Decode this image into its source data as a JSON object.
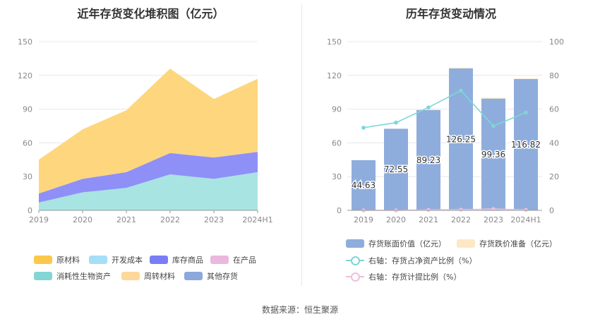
{
  "chart_data": [
    {
      "type": "area",
      "stacked": true,
      "title": "近年存货变化堆积图（亿元）",
      "categories": [
        "2019",
        "2020",
        "2021",
        "2022",
        "2023",
        "2024H1"
      ],
      "ylim": [
        0,
        150
      ],
      "yticks": [
        0,
        30,
        60,
        90,
        120,
        150
      ],
      "series": [
        {
          "name": "消耗性生物资产",
          "color": "#a8e4e2",
          "values": [
            7,
            16,
            20,
            32,
            28,
            34
          ]
        },
        {
          "name": "库存商品",
          "color": "#8f8ff8",
          "values": [
            8,
            12,
            14,
            19,
            19,
            18
          ]
        },
        {
          "name": "原材料",
          "color": "#fdd67e",
          "values": [
            30,
            44,
            55,
            75,
            52,
            65
          ]
        }
      ],
      "legend": [
        {
          "name": "原材料",
          "color": "#fbc84a"
        },
        {
          "name": "开发成本",
          "color": "#a6def7"
        },
        {
          "name": "库存商品",
          "color": "#7a7ef5"
        },
        {
          "name": "在产品",
          "color": "#eab8dc"
        },
        {
          "name": "消耗性生物资产",
          "color": "#84d6d4"
        },
        {
          "name": "周转材料",
          "color": "#fdd89a"
        },
        {
          "name": "其他存货",
          "color": "#8ca8dc"
        }
      ]
    },
    {
      "type": "bar",
      "title": "历年存货变动情况",
      "categories": [
        "2019",
        "2020",
        "2021",
        "2022",
        "2023",
        "2024H1"
      ],
      "ylim": [
        0,
        150
      ],
      "yticks": [
        0,
        30,
        60,
        90,
        120,
        150
      ],
      "y2lim": [
        0,
        100
      ],
      "y2ticks": [
        0,
        20,
        40,
        60,
        80,
        100
      ],
      "series": [
        {
          "name": "存货账面价值（亿元）",
          "kind": "bar",
          "axis": "left",
          "color": "#8eaddc",
          "values": [
            44.63,
            72.55,
            89.23,
            126.25,
            99.36,
            116.82
          ],
          "labels": [
            "44.63",
            "72.55",
            "89.23",
            "126.25",
            "99.36",
            "116.82"
          ]
        },
        {
          "name": "存货跌价准备（亿元）",
          "kind": "bar-stack",
          "axis": "left",
          "color": "#fde8c4",
          "values": [
            0,
            0,
            0.3,
            0.5,
            0.8,
            0.4
          ]
        },
        {
          "name": "右轴：存货占净资产比例（%）",
          "kind": "line",
          "axis": "right",
          "color": "#7ed6d6",
          "values": [
            49,
            52,
            61,
            71,
            50,
            58
          ]
        },
        {
          "name": "右轴：存货计提比例（%）",
          "kind": "line",
          "axis": "right",
          "color": "#eec0dc",
          "values": [
            0,
            0,
            0.3,
            0.4,
            0.8,
            0.3
          ]
        }
      ]
    }
  ],
  "source": "数据来源：恒生聚源"
}
